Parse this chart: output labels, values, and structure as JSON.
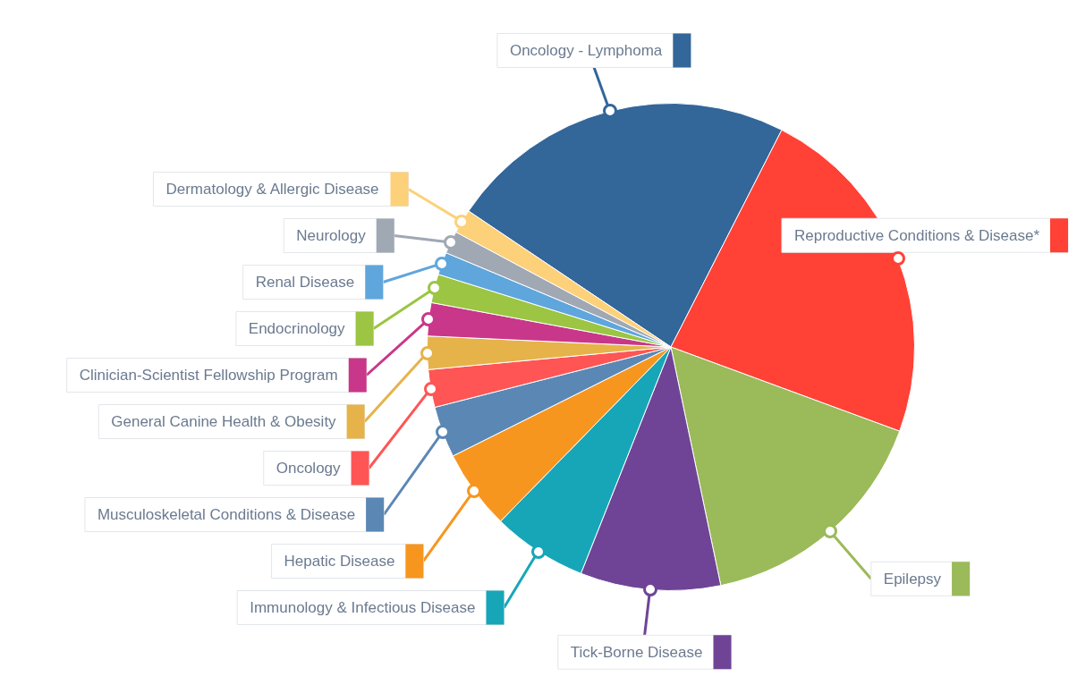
{
  "chart_data": {
    "type": "pie",
    "legend": "left",
    "categories": [
      "Oncology - Lymphoma",
      "Reproductive Conditions & Disease*",
      "Epilepsy",
      "Tick-Borne Disease",
      "Immunology & Infectious Disease",
      "Hepatic Disease",
      "Musculoskeletal Conditions & Disease",
      "Oncology",
      "General Canine Health & Obesity",
      "Clinician-Scientist Fellowship Program",
      "Endocrinology",
      "Renal Disease",
      "Neurology",
      "Dermatology & Allergic Disease"
    ],
    "values": [
      23.1,
      23.1,
      16.1,
      9.3,
      6.3,
      5.3,
      3.4,
      2.5,
      2.2,
      2.2,
      1.9,
      1.5,
      1.5,
      1.6
    ],
    "colors": [
      "#336699",
      "#ff4136",
      "#9bba59",
      "#6f4496",
      "#17a6b8",
      "#f7961f",
      "#5b87b5",
      "#ff5555",
      "#e6b34a",
      "#c9378a",
      "#9bc543",
      "#5fa6dc",
      "#a0a8b4",
      "#fdd07a"
    ]
  }
}
